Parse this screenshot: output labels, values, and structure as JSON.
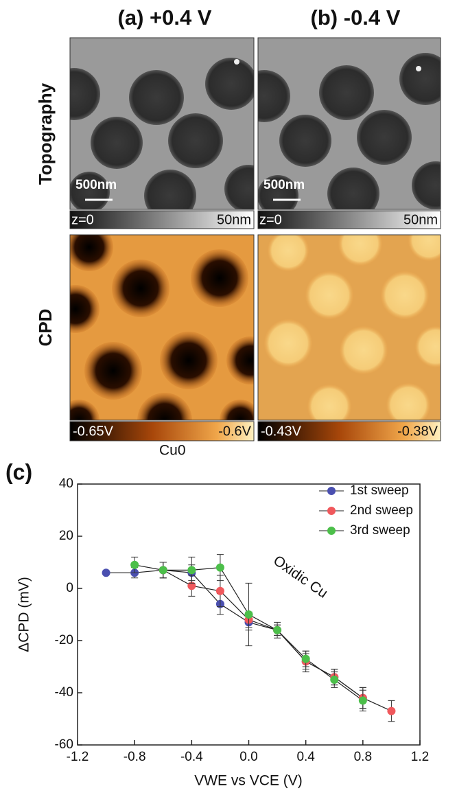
{
  "panel_a_title": "(a) +0.4 V",
  "panel_b_title": "(b) -0.4 V",
  "row_labels": [
    "Topography",
    "CPD"
  ],
  "scale_bars": [
    "500nm",
    "500nm"
  ],
  "topography_colorbars": [
    [
      "z=0",
      "50nm"
    ],
    [
      "z=0",
      "50nm"
    ]
  ],
  "cpd_colorbars": [
    [
      "-0.65V",
      "-0.6V"
    ],
    [
      "-0.43V",
      "-0.38V"
    ]
  ],
  "chart_data": {
    "type": "line",
    "panel_label": "(c)",
    "x_label": "VWE vs VCE (V)",
    "y_label": "ΔCPD (mV)",
    "annotations": [
      "Cu0",
      "Oxidic Cu"
    ],
    "x": [
      -1.0,
      -0.8,
      -0.6,
      -0.4,
      -0.2,
      0.0,
      0.2,
      0.4,
      0.6,
      0.8,
      1.0
    ],
    "series": [
      {
        "name": "1st sweep",
        "color": "#4a4fb0",
        "values": [
          6,
          6,
          7,
          6,
          -6,
          -13,
          -16,
          -28,
          -34,
          -42,
          null
        ],
        "errors": [
          null,
          2,
          3,
          3,
          4,
          3,
          2,
          3,
          3,
          4,
          null
        ]
      },
      {
        "name": "2nd sweep",
        "color": "#f0585c",
        "values": [
          null,
          null,
          7,
          1,
          -1,
          -12,
          -16,
          -28,
          -34,
          -42,
          -47
        ],
        "errors": [
          null,
          null,
          3,
          4,
          6,
          3,
          2,
          4,
          3,
          4,
          4
        ]
      },
      {
        "name": "3rd sweep",
        "color": "#4cbf4a",
        "values": [
          null,
          9,
          7,
          7,
          8,
          -10,
          -16,
          -27,
          -35,
          -43,
          null
        ],
        "errors": [
          null,
          3,
          3,
          5,
          5,
          12,
          3,
          3,
          3,
          4,
          null
        ]
      }
    ],
    "xlim": [
      -1.2,
      1.2
    ],
    "xticks": [
      -1.2,
      -0.8,
      -0.4,
      {
        "value": 0,
        "label": "0.0"
      },
      0.4,
      0.8,
      1.2
    ],
    "ylim": [
      -60,
      40
    ],
    "yticks": [
      -60,
      -40,
      -20,
      0,
      20,
      40
    ],
    "legend": "upper right"
  }
}
